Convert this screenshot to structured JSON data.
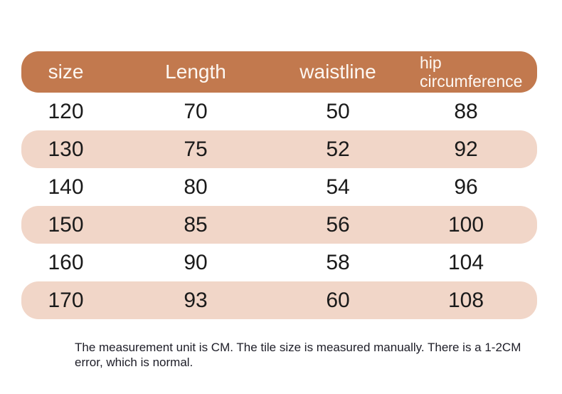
{
  "chart_data": {
    "type": "table",
    "title": "",
    "columns": [
      "size",
      "Length",
      "waistline",
      "hip circumference"
    ],
    "rows": [
      [
        "120",
        "70",
        "50",
        "88"
      ],
      [
        "130",
        "75",
        "52",
        "92"
      ],
      [
        "140",
        "80",
        "54",
        "96"
      ],
      [
        "150",
        "85",
        "56",
        "100"
      ],
      [
        "160",
        "90",
        "58",
        "104"
      ],
      [
        "170",
        "93",
        "60",
        "108"
      ]
    ],
    "layout_hints": {
      "striped": "alternating white and light pink rounded rows",
      "header_style": "rounded terracotta bar with white text",
      "unit": "CM"
    }
  },
  "footer": {
    "note": "The measurement unit is CM. The tile size is measured manually. There is a 1-2CM error, which is normal."
  },
  "colors": {
    "header_bg": "#c2794e",
    "alt_row_bg": "#f1d6c8",
    "header_text": "#fdf8f3",
    "cell_text": "#1a1a1a",
    "note_text": "#1d1d27",
    "background": "#ffffff"
  }
}
